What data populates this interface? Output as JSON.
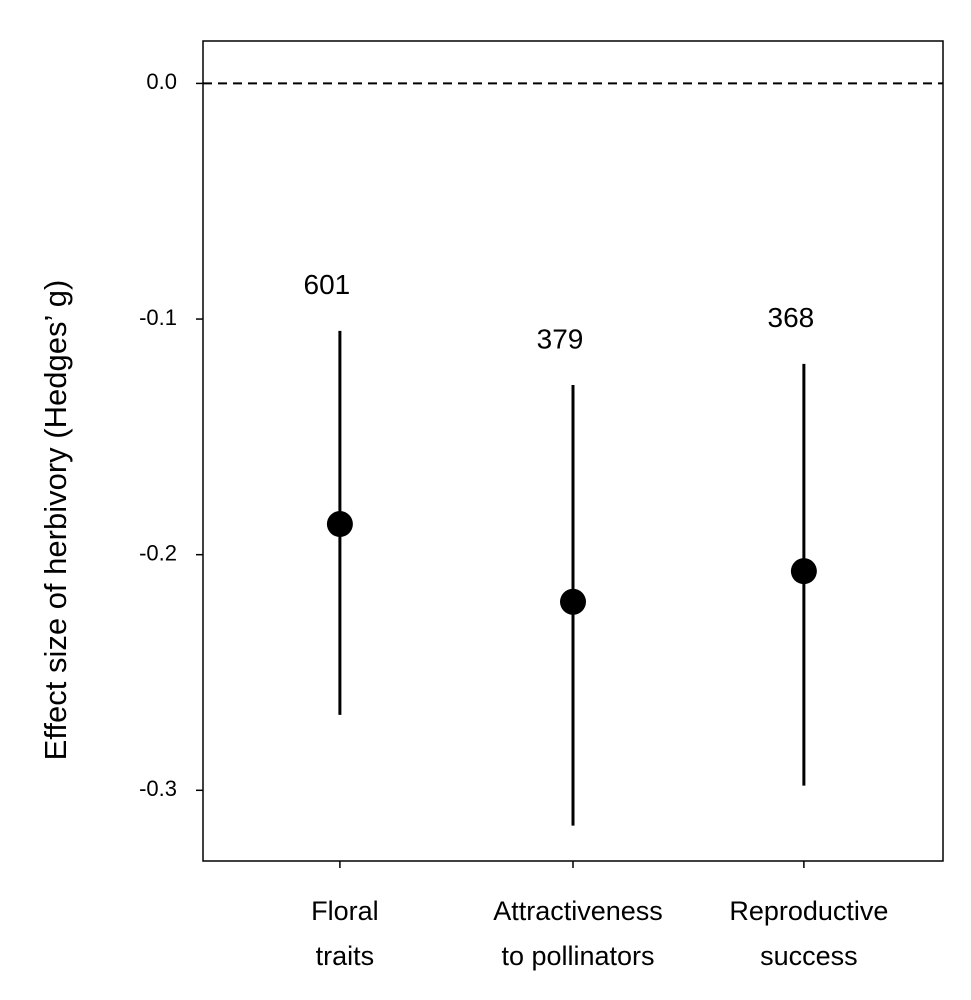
{
  "chart_data": {
    "type": "errorpoint",
    "y_label": "Effect size of herbivory (Hedges’ g)",
    "categories": [
      [
        "Floral",
        "traits"
      ],
      [
        "Attractiveness",
        "to pollinators"
      ],
      [
        "Reproductive",
        "success"
      ]
    ],
    "values": [
      -0.187,
      -0.22,
      -0.207
    ],
    "lower": [
      -0.268,
      -0.315,
      -0.298
    ],
    "upper": [
      -0.105,
      -0.128,
      -0.119
    ],
    "n": [
      601,
      379,
      368
    ],
    "color": "#000000",
    "ylim": [
      -0.33,
      0.018
    ],
    "yticks": [
      {
        "value": 0,
        "label": "0.0"
      },
      -0.1,
      -0.2,
      -0.3
    ],
    "reference_line": 0
  }
}
